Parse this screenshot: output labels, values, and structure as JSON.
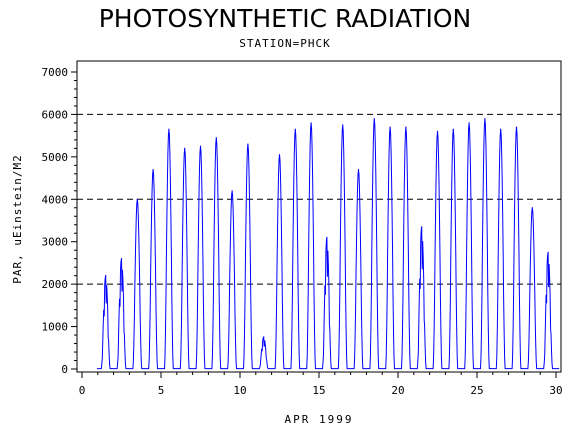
{
  "chart_data": {
    "type": "line",
    "title": "PHOTOSYNTHETIC RADIATION",
    "subtitle": "STATION=PHCK",
    "xlabel": "APR 1999",
    "ylabel": "PAR, uEinstein/M2",
    "xlim": [
      0,
      30
    ],
    "ylim": [
      0,
      7000
    ],
    "xticks": [
      0,
      5,
      10,
      15,
      20,
      25,
      30
    ],
    "yticks": [
      0,
      1000,
      2000,
      3000,
      4000,
      5000,
      6000,
      7000
    ],
    "reference_lines": [
      2000,
      4000,
      6000
    ],
    "grid": false,
    "line_color": "#0000ff",
    "series": [
      {
        "daily_peaks": [
          {
            "day": 1,
            "peak": 2200
          },
          {
            "day": 2,
            "peak": 2600
          },
          {
            "day": 3,
            "peak": 4000
          },
          {
            "day": 4,
            "peak": 4700
          },
          {
            "day": 5,
            "peak": 5650
          },
          {
            "day": 6,
            "peak": 5200
          },
          {
            "day": 7,
            "peak": 5250
          },
          {
            "day": 8,
            "peak": 5450
          },
          {
            "day": 9,
            "peak": 4200
          },
          {
            "day": 10,
            "peak": 5300
          },
          {
            "day": 11,
            "peak": 750
          },
          {
            "day": 12,
            "peak": 5050
          },
          {
            "day": 13,
            "peak": 5650
          },
          {
            "day": 14,
            "peak": 5800
          },
          {
            "day": 15,
            "peak": 3100
          },
          {
            "day": 16,
            "peak": 5750
          },
          {
            "day": 17,
            "peak": 4700
          },
          {
            "day": 18,
            "peak": 5900
          },
          {
            "day": 19,
            "peak": 5700
          },
          {
            "day": 20,
            "peak": 5700
          },
          {
            "day": 21,
            "peak": 3350
          },
          {
            "day": 22,
            "peak": 5600
          },
          {
            "day": 23,
            "peak": 5650
          },
          {
            "day": 24,
            "peak": 5800
          },
          {
            "day": 25,
            "peak": 5900
          },
          {
            "day": 26,
            "peak": 5650
          },
          {
            "day": 27,
            "peak": 5700
          },
          {
            "day": 28,
            "peak": 3800
          },
          {
            "day": 29,
            "peak": 2750
          }
        ]
      }
    ]
  }
}
